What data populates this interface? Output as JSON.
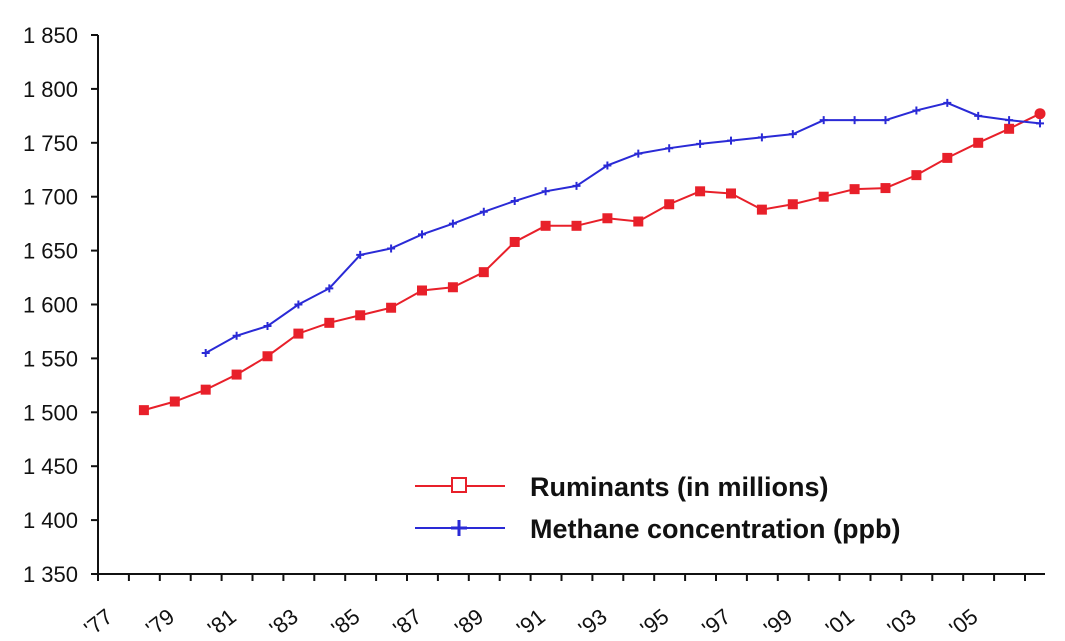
{
  "chart_data": {
    "type": "line",
    "title": "",
    "xlabel": "",
    "ylabel": "",
    "x": [
      1977,
      1978,
      1979,
      1980,
      1981,
      1982,
      1983,
      1984,
      1985,
      1986,
      1987,
      1988,
      1989,
      1990,
      1991,
      1992,
      1993,
      1994,
      1995,
      1996,
      1997,
      1998,
      1999,
      2000,
      2001,
      2002,
      2003,
      2004,
      2005,
      2006,
      2007
    ],
    "x_tick_values": [
      1977,
      1979,
      1981,
      1983,
      1985,
      1987,
      1989,
      1991,
      1993,
      1995,
      1997,
      1999,
      2001,
      2003,
      2005
    ],
    "x_tick_labels": [
      "'77",
      "'79",
      "'81",
      "'83",
      "'85",
      "'87",
      "'89",
      "'91",
      "'93",
      "'95",
      "'97",
      "'99",
      "'01",
      "'03",
      "'05"
    ],
    "ylim": [
      1350,
      1850
    ],
    "y_ticks": [
      1350,
      1400,
      1450,
      1500,
      1550,
      1600,
      1650,
      1700,
      1750,
      1800,
      1850
    ],
    "y_tick_labels": [
      "1 350",
      "1 400",
      "1 450",
      "1 500",
      "1 550",
      "1 600",
      "1 650",
      "1 700",
      "1 750",
      "1 800",
      "1 850"
    ],
    "grid": false,
    "legend_position": "bottom-right",
    "series": [
      {
        "name": "Ruminants (in millions)",
        "color": "#e8202a",
        "marker": "square",
        "values": [
          null,
          1502,
          1510,
          1521,
          1535,
          1552,
          1573,
          1583,
          1590,
          1597,
          1613,
          1616,
          1630,
          1658,
          1673,
          1673,
          1680,
          1677,
          1693,
          1705,
          1703,
          1688,
          1693,
          1700,
          1707,
          1708,
          1720,
          1736,
          1750,
          1763,
          1777
        ]
      },
      {
        "name": "Methane concentration (ppb)",
        "color": "#2a2ad6",
        "marker": "plus",
        "values": [
          null,
          null,
          null,
          1555,
          1571,
          1580,
          1600,
          1615,
          1646,
          1652,
          1665,
          1675,
          1686,
          1696,
          1705,
          1710,
          1729,
          1740,
          1745,
          1749,
          1752,
          1755,
          1758,
          1771,
          1771,
          1771,
          1780,
          1787,
          1775,
          1771,
          1768
        ]
      }
    ]
  }
}
